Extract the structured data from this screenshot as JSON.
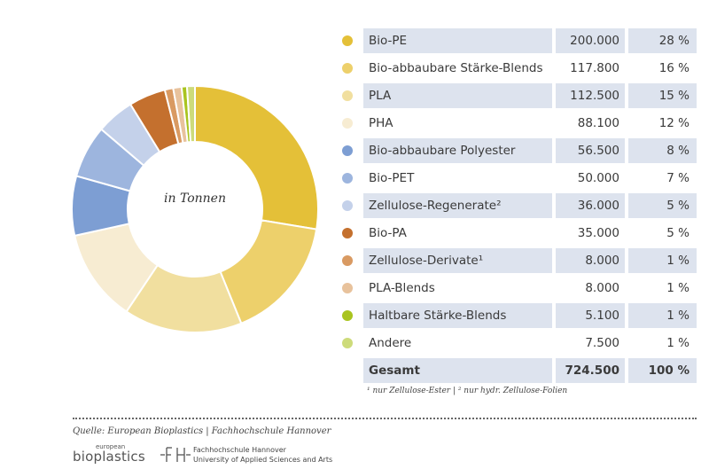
{
  "chart_data": {
    "type": "pie",
    "donut": true,
    "center_label": "in Tonnen",
    "slices": [
      {
        "label": "Bio-PE",
        "value": 200000,
        "value_text": "200.000",
        "percent_text": "28 %",
        "color": "#e4c038"
      },
      {
        "label": "Bio-abbaubare Stärke-Blends",
        "value": 117800,
        "value_text": "117.800",
        "percent_text": "16 %",
        "color": "#edd06b"
      },
      {
        "label": "PLA",
        "value": 112500,
        "value_text": "112.500",
        "percent_text": "15 %",
        "color": "#f1df9f"
      },
      {
        "label": "PHA",
        "value": 88100,
        "value_text": "88.100",
        "percent_text": "12 %",
        "color": "#f7ecd2"
      },
      {
        "label": "Bio-abbaubare Polyester",
        "value": 56500,
        "value_text": "56.500",
        "percent_text": "8 %",
        "color": "#7d9ed3"
      },
      {
        "label": "Bio-PET",
        "value": 50000,
        "value_text": "50.000",
        "percent_text": "7 %",
        "color": "#9db5de"
      },
      {
        "label": "Zellulose-Regenerate²",
        "value": 36000,
        "value_text": "36.000",
        "percent_text": "5 %",
        "color": "#c4d1ea"
      },
      {
        "label": "Bio-PA",
        "value": 35000,
        "value_text": "35.000",
        "percent_text": "5 %",
        "color": "#c4702e"
      },
      {
        "label": "Zellulose-Derivate¹",
        "value": 8000,
        "value_text": "8.000",
        "percent_text": "1 %",
        "color": "#d99a62"
      },
      {
        "label": "PLA-Blends",
        "value": 8000,
        "value_text": "8.000",
        "percent_text": "1 %",
        "color": "#e8c29c"
      },
      {
        "label": "Haltbare Stärke-Blends",
        "value": 5100,
        "value_text": "5.100",
        "percent_text": "1 %",
        "color": "#a9c41f"
      },
      {
        "label": "Andere",
        "value": 7500,
        "value_text": "7.500",
        "percent_text": "1 %",
        "color": "#cddb7a"
      }
    ],
    "total": {
      "label": "Gesamt",
      "value_text": "724.500",
      "percent_text": "100 %"
    }
  },
  "footnote": "¹ nur Zellulose-Ester | ² nur hydr. Zellulose-Folien",
  "source": "Quelle: European Bioplastics | Fachhochschule Hannover",
  "logos": {
    "eb_small": "european",
    "eb_main": "bioplastics",
    "fh_mark": "FH",
    "fh_line1": "Fachhochschule Hannover",
    "fh_line2": "University of Applied Sciences and Arts"
  }
}
